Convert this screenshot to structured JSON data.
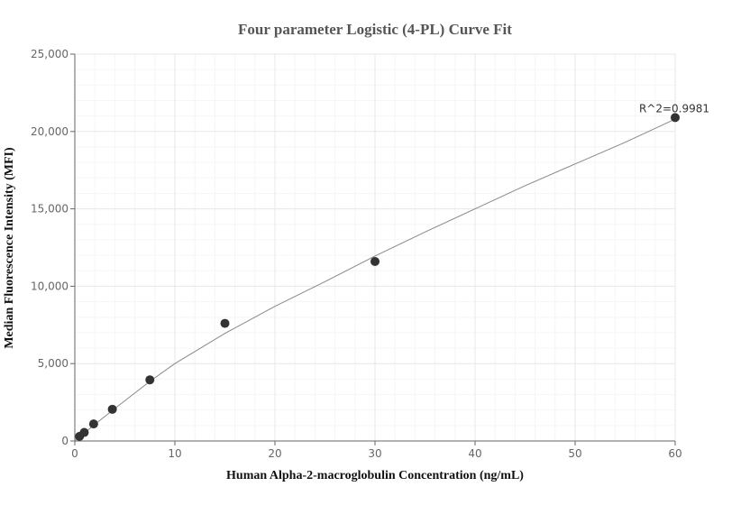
{
  "chart_data": {
    "type": "scatter",
    "title": "Four parameter Logistic (4-PL) Curve Fit",
    "xlabel": "Human Alpha-2-macroglobulin Concentration (ng/mL)",
    "ylabel": "Median Fluorescence Intensity (MFI)",
    "xlim": [
      0,
      60
    ],
    "ylim": [
      0,
      25000
    ],
    "x_ticks": [
      "0",
      "10",
      "20",
      "30",
      "40",
      "50",
      "60"
    ],
    "y_ticks": [
      "0",
      "5,000",
      "10,000",
      "15,000",
      "20,000",
      "25,000"
    ],
    "grid": true,
    "points": [
      {
        "x": 0.47,
        "y": 300
      },
      {
        "x": 0.94,
        "y": 550
      },
      {
        "x": 1.88,
        "y": 1100
      },
      {
        "x": 3.75,
        "y": 2050
      },
      {
        "x": 7.5,
        "y": 3950
      },
      {
        "x": 15,
        "y": 7600
      },
      {
        "x": 30,
        "y": 11600
      },
      {
        "x": 60,
        "y": 20900
      }
    ],
    "fit_curve": [
      {
        "x": 0,
        "y": 0
      },
      {
        "x": 1,
        "y": 540
      },
      {
        "x": 2,
        "y": 1070
      },
      {
        "x": 4,
        "y": 2100
      },
      {
        "x": 7.5,
        "y": 3850
      },
      {
        "x": 10,
        "y": 5000
      },
      {
        "x": 15,
        "y": 6950
      },
      {
        "x": 20,
        "y": 8700
      },
      {
        "x": 25,
        "y": 10300
      },
      {
        "x": 30,
        "y": 11950
      },
      {
        "x": 35,
        "y": 13500
      },
      {
        "x": 40,
        "y": 15000
      },
      {
        "x": 45,
        "y": 16500
      },
      {
        "x": 50,
        "y": 17900
      },
      {
        "x": 55,
        "y": 19300
      },
      {
        "x": 60,
        "y": 20800
      }
    ],
    "annotation": "R^2=0.9981",
    "colors": {
      "point": "#333333",
      "curve": "#888888",
      "grid_major": "#e3e8ea",
      "grid_minor": "#f4f6f7",
      "axis": "#666666"
    }
  }
}
